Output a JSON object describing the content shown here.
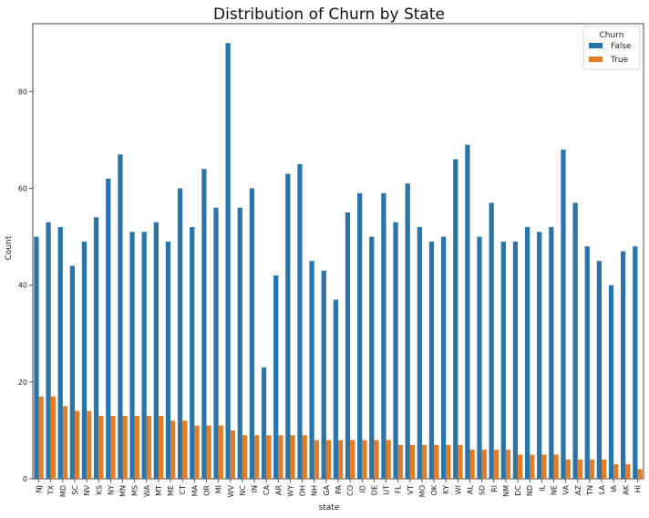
{
  "chart_data": {
    "type": "bar",
    "title": "Distribution of Churn by State",
    "xlabel": "state",
    "ylabel": "Count",
    "ylim": [
      0,
      94
    ],
    "yticks": [
      0,
      20,
      40,
      60,
      80
    ],
    "grid": false,
    "legend": {
      "title": "Churn",
      "placement": "top-right"
    },
    "categories": [
      "NJ",
      "TX",
      "MD",
      "SC",
      "NV",
      "KS",
      "NY",
      "MN",
      "MS",
      "WA",
      "MT",
      "ME",
      "CT",
      "MA",
      "OR",
      "MI",
      "WV",
      "NC",
      "IN",
      "CA",
      "AR",
      "WY",
      "OH",
      "NH",
      "GA",
      "PA",
      "CO",
      "ID",
      "DE",
      "UT",
      "FL",
      "VT",
      "MO",
      "OK",
      "KY",
      "WI",
      "AL",
      "SD",
      "RI",
      "NM",
      "DC",
      "ND",
      "IL",
      "NE",
      "VA",
      "AZ",
      "TN",
      "LA",
      "IA",
      "AK",
      "HI"
    ],
    "series": [
      {
        "name": "False",
        "color": "#2b74a8",
        "values": [
          50,
          53,
          52,
          44,
          49,
          54,
          62,
          67,
          51,
          51,
          53,
          49,
          60,
          52,
          64,
          56,
          90,
          56,
          60,
          23,
          42,
          63,
          65,
          45,
          43,
          37,
          55,
          59,
          50,
          59,
          53,
          61,
          52,
          49,
          50,
          66,
          69,
          50,
          57,
          49,
          49,
          52,
          51,
          52,
          68,
          57,
          48,
          45,
          40,
          47,
          48
        ]
      },
      {
        "name": "True",
        "color": "#e37c28",
        "values": [
          17,
          17,
          15,
          14,
          14,
          13,
          13,
          13,
          13,
          13,
          13,
          12,
          12,
          11,
          11,
          11,
          10,
          9,
          9,
          9,
          9,
          9,
          9,
          8,
          8,
          8,
          8,
          8,
          8,
          8,
          7,
          7,
          7,
          7,
          7,
          7,
          6,
          6,
          6,
          6,
          5,
          5,
          5,
          5,
          4,
          4,
          4,
          4,
          3,
          3,
          2
        ]
      }
    ]
  }
}
